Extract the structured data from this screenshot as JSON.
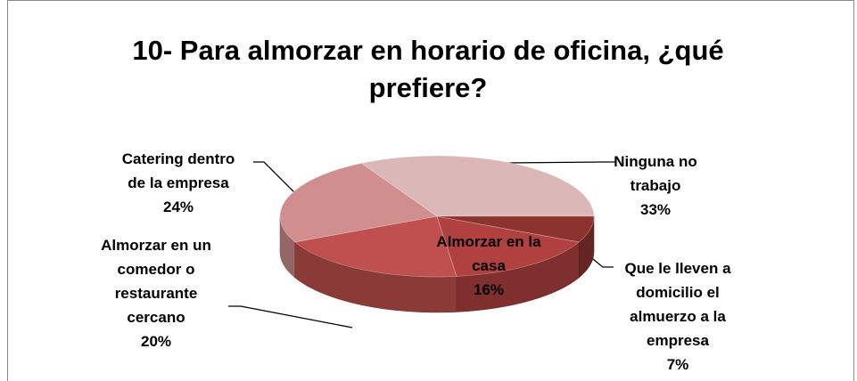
{
  "chart_data": {
    "type": "pie",
    "title": "10- Para almorzar en horario de oficina, ¿qué prefiere?",
    "categories": [
      "Ninguna no trabajo",
      "Catering dentro de la empresa",
      "Almorzar en un comedor o restaurante cercano",
      "Almorzar en la casa",
      "Que le lleven a domicilio el almuerzo a la empresa"
    ],
    "values": [
      33,
      24,
      20,
      16,
      7
    ],
    "value_labels": [
      "33%",
      "24%",
      "20%",
      "16%",
      "7%"
    ],
    "colors": [
      "#dcb7b8",
      "#d08e8f",
      "#c0504d",
      "#b0413f",
      "#8c3330"
    ]
  }
}
